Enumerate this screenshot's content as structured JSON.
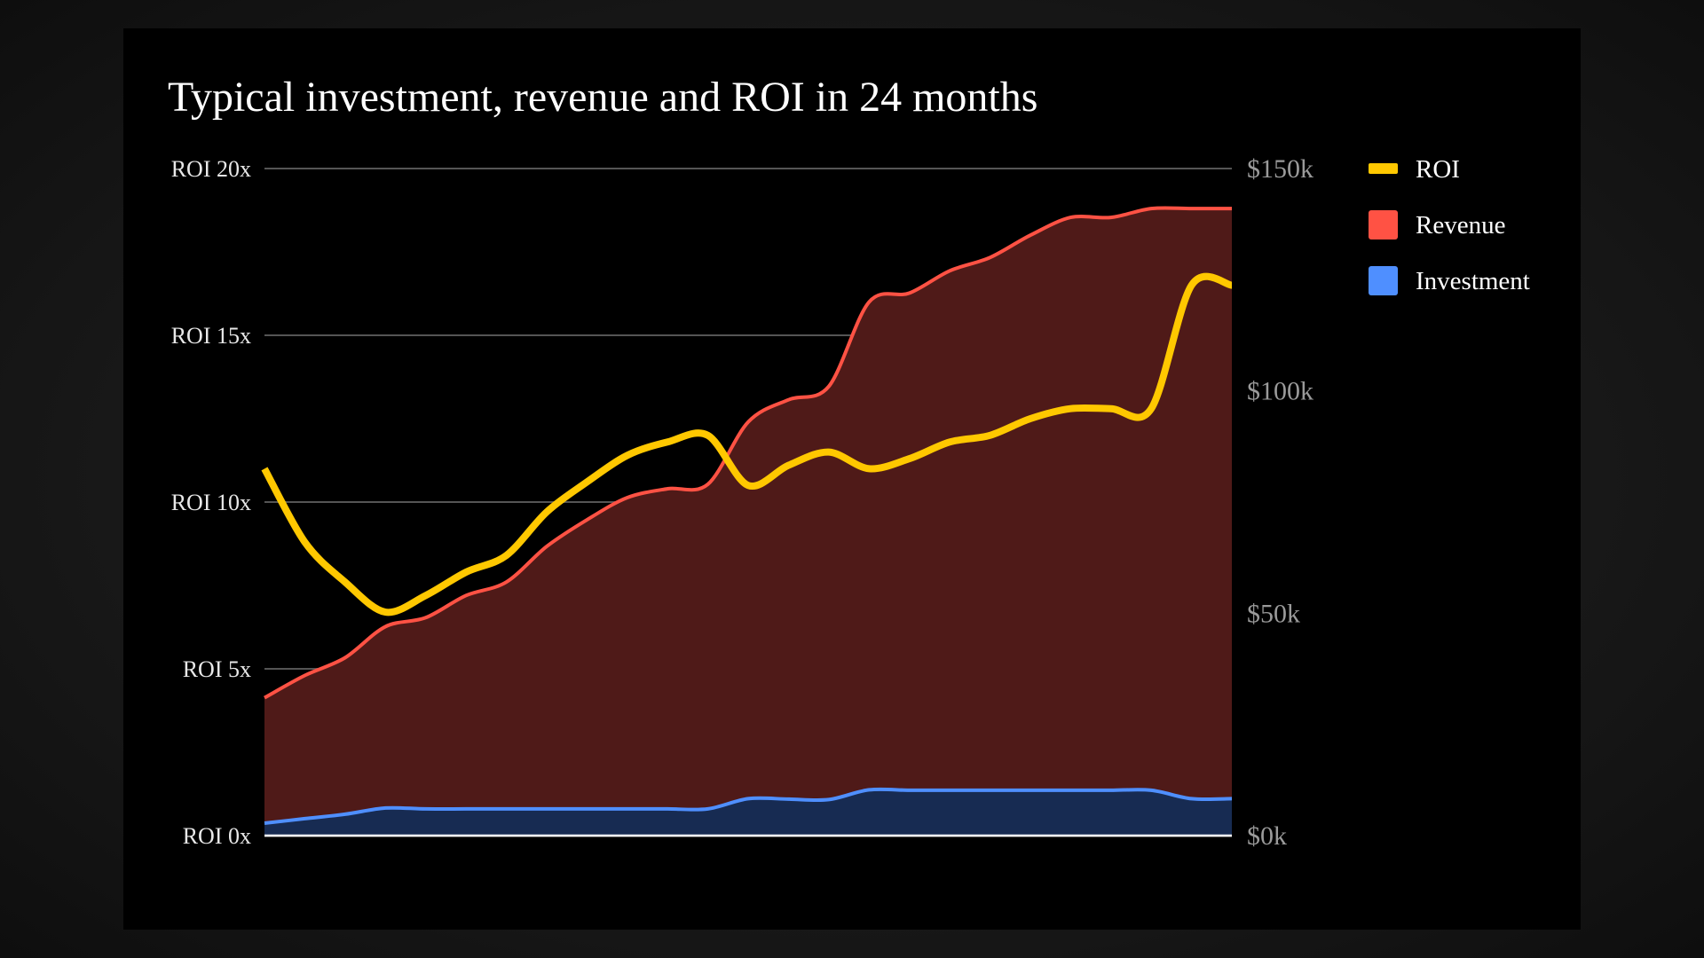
{
  "chart_data": {
    "type": "area",
    "title": "Typical investment, revenue and ROI in 24 months",
    "xlabel": "",
    "x": [
      1,
      2,
      3,
      4,
      5,
      6,
      7,
      8,
      9,
      10,
      11,
      12,
      13,
      14,
      15,
      16,
      17,
      18,
      19,
      20,
      21,
      22,
      23,
      24,
      25
    ],
    "left_axis": {
      "label": "",
      "ylim": [
        0,
        20
      ],
      "ticks": [
        0,
        5,
        10,
        15,
        20
      ],
      "tick_labels": [
        "ROI 0x",
        "ROI 5x",
        "ROI 10x",
        "ROI 15x",
        "ROI 20x"
      ]
    },
    "right_axis": {
      "label": "",
      "ylim": [
        0,
        150000
      ],
      "ticks": [
        0,
        50000,
        100000,
        150000
      ],
      "tick_labels": [
        "$0k",
        "$50k",
        "$100k",
        "$150k"
      ]
    },
    "grid": true,
    "legend_position": "right",
    "series": [
      {
        "name": "ROI",
        "kind": "line",
        "axis": "left",
        "color": "#ffc800",
        "values": [
          11.0,
          8.8,
          7.6,
          6.7,
          7.2,
          7.9,
          8.4,
          9.7,
          10.6,
          11.4,
          11.8,
          12.0,
          10.5,
          11.1,
          11.5,
          11.0,
          11.3,
          11.8,
          12.0,
          12.5,
          12.8,
          12.8,
          12.8,
          16.5,
          16.5
        ]
      },
      {
        "name": "Revenue",
        "kind": "area",
        "axis": "right",
        "color": "#ff5244",
        "fill": "#4f1a18",
        "values": [
          31000,
          36000,
          40000,
          47000,
          49000,
          54000,
          57000,
          65000,
          71000,
          76000,
          78000,
          79000,
          93000,
          98000,
          101000,
          120000,
          122000,
          127000,
          130000,
          135000,
          139000,
          139000,
          141000,
          141000,
          141000
        ]
      },
      {
        "name": "Investment",
        "kind": "area",
        "axis": "right",
        "color": "#4f8fff",
        "fill": "#172b52",
        "values": [
          2800,
          3800,
          4800,
          6200,
          6000,
          6000,
          6000,
          6000,
          6000,
          6000,
          6000,
          6000,
          8300,
          8200,
          8100,
          10300,
          10200,
          10200,
          10200,
          10200,
          10200,
          10200,
          10200,
          8300,
          8300
        ]
      }
    ]
  }
}
